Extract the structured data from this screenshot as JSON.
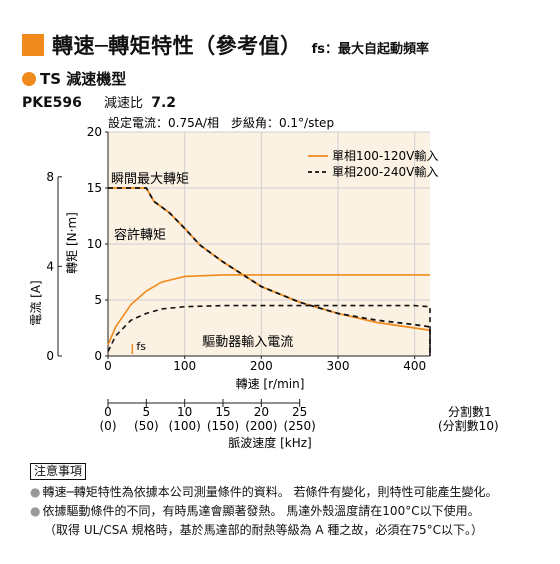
{
  "title": {
    "main": "轉速─轉矩特性（參考值）",
    "note": "fs：最大自起動頻率"
  },
  "subtitle": "TS 減速機型",
  "model": {
    "code": "PKE596",
    "ratio_label": "減速比",
    "ratio_value": "7.2"
  },
  "settings": "設定電流：0.75A/相　步級角：0.1°/step",
  "chart_data": {
    "type": "line",
    "xlabel": "轉速 [r/min]",
    "ylabel_torque": "轉矩 [N·m]",
    "ylabel_current": "電流 [A]",
    "xlim": [
      0,
      420
    ],
    "ylim": [
      0,
      20
    ],
    "xticks": [
      "0",
      "100",
      "200",
      "300",
      "400"
    ],
    "yticks": [
      "0",
      "5",
      "10",
      "15",
      "20"
    ],
    "current_axis": {
      "ylim": [
        0,
        10
      ],
      "ticks": [
        "0",
        "4",
        "8"
      ]
    },
    "grid": true,
    "legend_position": "top-right",
    "series": [
      {
        "name": "單相100-120V輸入",
        "color": "#f08a1c",
        "style": "solid",
        "torque": {
          "x": [
            0,
            20,
            50,
            60,
            80,
            100,
            120,
            150,
            200,
            250,
            300,
            350,
            400,
            420
          ],
          "y": [
            15,
            15,
            15,
            13.8,
            12.8,
            11.4,
            9.9,
            8.4,
            6.2,
            4.8,
            3.8,
            3.0,
            2.5,
            2.3
          ]
        },
        "current": {
          "x": [
            0,
            10,
            30,
            50,
            70,
            100,
            150,
            200,
            300,
            400,
            420
          ],
          "y": [
            0.5,
            1.3,
            2.3,
            2.9,
            3.3,
            3.55,
            3.62,
            3.62,
            3.62,
            3.62,
            3.62
          ]
        }
      },
      {
        "name": "單相200-240V輸入",
        "color": "#111111",
        "style": "dashed",
        "torque": {
          "x": [
            0,
            20,
            50,
            60,
            80,
            100,
            120,
            150,
            200,
            250,
            300,
            350,
            400,
            420,
            420
          ],
          "y": [
            15,
            15,
            15,
            13.8,
            12.8,
            11.4,
            9.9,
            8.4,
            6.2,
            4.8,
            3.8,
            3.2,
            2.8,
            2.6,
            0
          ]
        },
        "current": {
          "x": [
            0,
            10,
            30,
            50,
            70,
            100,
            150,
            200,
            300,
            400,
            420,
            420
          ],
          "y": [
            0.2,
            0.9,
            1.6,
            1.9,
            2.1,
            2.2,
            2.25,
            2.25,
            2.25,
            2.25,
            2.2,
            0
          ]
        }
      }
    ],
    "annotations": [
      {
        "text": "瞬間最大轉矩"
      },
      {
        "text": "容許轉矩"
      },
      {
        "text": "驅動器輸入電流"
      },
      {
        "text": "fs"
      }
    ],
    "fs_speed": 50
  },
  "pulse_axis": {
    "label": "脈波速度 [kHz]",
    "ticks": [
      {
        "top": "0",
        "bottom": "(0)",
        "kpps": 0
      },
      {
        "top": "5",
        "bottom": "(50)",
        "kpps": 5
      },
      {
        "top": "10",
        "bottom": "(100)",
        "kpps": 10
      },
      {
        "top": "15",
        "bottom": "(150)",
        "kpps": 15
      },
      {
        "top": "20",
        "bottom": "(200)",
        "kpps": 20
      },
      {
        "top": "25",
        "bottom": "(250)",
        "kpps": 25
      }
    ],
    "row1_label": "分割數1",
    "row2_label": "(分割數10)"
  },
  "notes": {
    "heading": "注意事項",
    "items": [
      "轉速─轉矩特性為依據本公司測量條件的資料。 若條件有變化，則特性可能產生變化。",
      "依據驅動條件的不同，有時馬達會顯著發熱。 馬達外殼溫度請在100°C以下使用。"
    ],
    "sub": "（取得 UL/CSA 規格時，基於馬達部的耐熱等級為 A 種之故，必須在75°C以下。）"
  }
}
